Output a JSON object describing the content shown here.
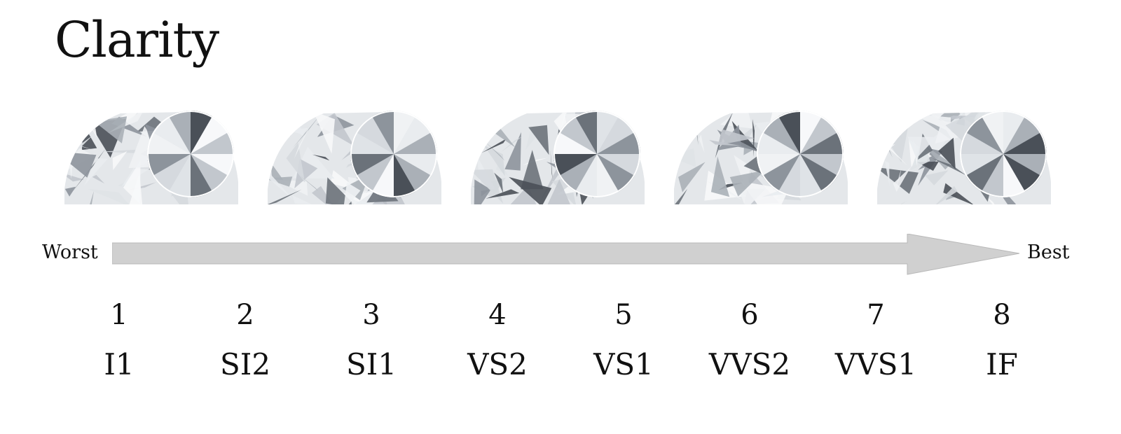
{
  "title": "Clarity",
  "scale": {
    "worst_label": "Worst",
    "best_label": "Best"
  },
  "grades": [
    {
      "number": "1",
      "code": "I1"
    },
    {
      "number": "2",
      "code": "SI2"
    },
    {
      "number": "3",
      "code": "SI1"
    },
    {
      "number": "4",
      "code": "VS2"
    },
    {
      "number": "5",
      "code": "VS1"
    },
    {
      "number": "6",
      "code": "VVS2"
    },
    {
      "number": "7",
      "code": "VVS1"
    },
    {
      "number": "8",
      "code": "IF"
    }
  ],
  "diamond_images": [
    "diamond-image-1",
    "diamond-image-2",
    "diamond-image-3",
    "diamond-image-4",
    "diamond-image-5"
  ],
  "colors": {
    "arrow_fill": "#d0d0d0",
    "arrow_stroke": "#b9b9b9",
    "text": "#111111"
  }
}
